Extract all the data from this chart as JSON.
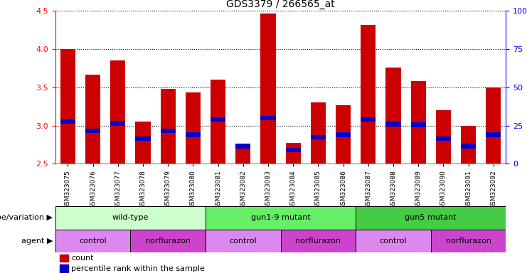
{
  "title": "GDS3379 / 266565_at",
  "samples": [
    "GSM323075",
    "GSM323076",
    "GSM323077",
    "GSM323078",
    "GSM323079",
    "GSM323080",
    "GSM323081",
    "GSM323082",
    "GSM323083",
    "GSM323084",
    "GSM323085",
    "GSM323086",
    "GSM323087",
    "GSM323088",
    "GSM323089",
    "GSM323090",
    "GSM323091",
    "GSM323092"
  ],
  "counts": [
    4.0,
    3.67,
    3.85,
    3.05,
    3.48,
    3.43,
    3.6,
    2.75,
    4.47,
    2.77,
    3.3,
    3.27,
    4.32,
    3.76,
    3.58,
    3.2,
    3.0,
    3.5
  ],
  "percentile_ranks": [
    3.05,
    2.93,
    3.03,
    2.83,
    2.93,
    2.88,
    3.08,
    2.73,
    3.1,
    2.68,
    2.85,
    2.88,
    3.08,
    3.02,
    3.01,
    2.83,
    2.73,
    2.88
  ],
  "bar_color": "#cc0000",
  "pct_color": "#0000cc",
  "ylim": [
    2.5,
    4.5
  ],
  "yticks_left": [
    2.5,
    3.0,
    3.5,
    4.0,
    4.5
  ],
  "yticks_right_vals": [
    "0",
    "25",
    "50",
    "75",
    "100%"
  ],
  "yticks_right_positions": [
    2.5,
    3.0,
    3.5,
    4.0,
    4.5
  ],
  "genotype_groups": [
    {
      "label": "wild-type",
      "start": 0,
      "end": 6,
      "color": "#ccffcc"
    },
    {
      "label": "gun1-9 mutant",
      "start": 6,
      "end": 12,
      "color": "#66ee66"
    },
    {
      "label": "gun5 mutant",
      "start": 12,
      "end": 18,
      "color": "#44cc44"
    }
  ],
  "agent_groups": [
    {
      "label": "control",
      "start": 0,
      "end": 3,
      "color": "#dd88ee"
    },
    {
      "label": "norflurazon",
      "start": 3,
      "end": 6,
      "color": "#cc44cc"
    },
    {
      "label": "control",
      "start": 6,
      "end": 9,
      "color": "#dd88ee"
    },
    {
      "label": "norflurazon",
      "start": 9,
      "end": 12,
      "color": "#cc44cc"
    },
    {
      "label": "control",
      "start": 12,
      "end": 15,
      "color": "#dd88ee"
    },
    {
      "label": "norflurazon",
      "start": 15,
      "end": 18,
      "color": "#cc44cc"
    }
  ],
  "genotype_label": "genotype/variation",
  "agent_label": "agent",
  "legend_count_label": "count",
  "legend_pct_label": "percentile rank within the sample",
  "bar_width": 0.6,
  "bg_color": "#ffffff"
}
